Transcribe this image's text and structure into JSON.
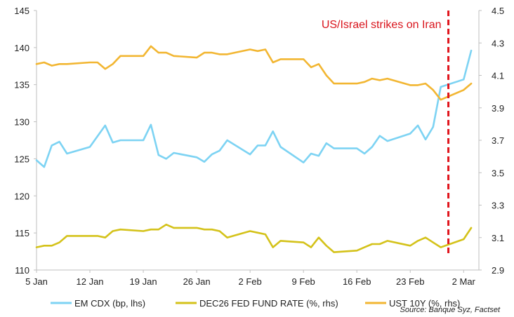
{
  "chart_data": {
    "type": "line",
    "x_start": "2026-01-05",
    "x_end": "2026-03-04",
    "x_ticks": [
      {
        "label": "5 Jan",
        "date": "2026-01-05"
      },
      {
        "label": "12 Jan",
        "date": "2026-01-12"
      },
      {
        "label": "19 Jan",
        "date": "2026-01-19"
      },
      {
        "label": "26 Jan",
        "date": "2026-01-26"
      },
      {
        "label": "2 Feb",
        "date": "2026-02-02"
      },
      {
        "label": "9 Feb",
        "date": "2026-02-09"
      },
      {
        "label": "16 Feb",
        "date": "2026-02-16"
      },
      {
        "label": "23 Feb",
        "date": "2026-02-23"
      },
      {
        "label": "2 Mar",
        "date": "2026-03-02"
      }
    ],
    "y_left": {
      "min": 110,
      "max": 145,
      "ticks": [
        110,
        115,
        120,
        125,
        130,
        135,
        140,
        145
      ]
    },
    "y_right": {
      "min": 2.9,
      "max": 4.5,
      "ticks": [
        "2.9",
        "3.1",
        "3.3",
        "3.5",
        "3.7",
        "3.9",
        "4.1",
        "4.3",
        "4.5"
      ]
    },
    "grid": false,
    "legend_position": "bottom",
    "annotation": {
      "text": "US/Israel strikes on Iran",
      "date": "2026-02-28",
      "color": "#e0141c"
    },
    "source": "Source: Banque Syz, Factset",
    "series": [
      {
        "name": "EM CDX (bp, lhs)",
        "axis": "left",
        "color": "#7dd3f3",
        "points": [
          [
            "2026-01-05",
            124.8
          ],
          [
            "2026-01-06",
            123.9
          ],
          [
            "2026-01-07",
            126.8
          ],
          [
            "2026-01-08",
            127.3
          ],
          [
            "2026-01-09",
            125.7
          ],
          [
            "2026-01-12",
            126.6
          ],
          [
            "2026-01-14",
            129.5
          ],
          [
            "2026-01-15",
            127.2
          ],
          [
            "2026-01-16",
            127.5
          ],
          [
            "2026-01-19",
            127.5
          ],
          [
            "2026-01-20",
            129.6
          ],
          [
            "2026-01-21",
            125.5
          ],
          [
            "2026-01-22",
            125.0
          ],
          [
            "2026-01-23",
            125.8
          ],
          [
            "2026-01-26",
            125.2
          ],
          [
            "2026-01-27",
            124.6
          ],
          [
            "2026-01-28",
            125.6
          ],
          [
            "2026-01-29",
            126.1
          ],
          [
            "2026-01-30",
            127.5
          ],
          [
            "2026-02-02",
            125.6
          ],
          [
            "2026-02-03",
            126.8
          ],
          [
            "2026-02-04",
            126.8
          ],
          [
            "2026-02-05",
            128.7
          ],
          [
            "2026-02-06",
            126.6
          ],
          [
            "2026-02-09",
            124.5
          ],
          [
            "2026-02-10",
            125.7
          ],
          [
            "2026-02-11",
            125.4
          ],
          [
            "2026-02-12",
            127.1
          ],
          [
            "2026-02-13",
            126.4
          ],
          [
            "2026-02-16",
            126.4
          ],
          [
            "2026-02-17",
            125.7
          ],
          [
            "2026-02-18",
            126.6
          ],
          [
            "2026-02-19",
            128.1
          ],
          [
            "2026-02-20",
            127.4
          ],
          [
            "2026-02-23",
            128.4
          ],
          [
            "2026-02-24",
            129.5
          ],
          [
            "2026-02-25",
            127.6
          ],
          [
            "2026-02-26",
            129.3
          ],
          [
            "2026-02-27",
            134.7
          ],
          [
            "2026-03-02",
            135.7
          ],
          [
            "2026-03-03",
            139.6
          ]
        ]
      },
      {
        "name": "DEC26 FED FUND RATE (%, rhs)",
        "axis": "right",
        "color": "#d4c21a",
        "points": [
          [
            "2026-01-05",
            3.04
          ],
          [
            "2026-01-06",
            3.05
          ],
          [
            "2026-01-07",
            3.05
          ],
          [
            "2026-01-08",
            3.07
          ],
          [
            "2026-01-09",
            3.11
          ],
          [
            "2026-01-12",
            3.11
          ],
          [
            "2026-01-13",
            3.11
          ],
          [
            "2026-01-14",
            3.1
          ],
          [
            "2026-01-15",
            3.14
          ],
          [
            "2026-01-16",
            3.15
          ],
          [
            "2026-01-19",
            3.14
          ],
          [
            "2026-01-20",
            3.15
          ],
          [
            "2026-01-21",
            3.15
          ],
          [
            "2026-01-22",
            3.18
          ],
          [
            "2026-01-23",
            3.16
          ],
          [
            "2026-01-26",
            3.16
          ],
          [
            "2026-01-27",
            3.15
          ],
          [
            "2026-01-28",
            3.15
          ],
          [
            "2026-01-29",
            3.14
          ],
          [
            "2026-01-30",
            3.1
          ],
          [
            "2026-02-02",
            3.14
          ],
          [
            "2026-02-03",
            3.13
          ],
          [
            "2026-02-04",
            3.12
          ],
          [
            "2026-02-05",
            3.04
          ],
          [
            "2026-02-06",
            3.08
          ],
          [
            "2026-02-09",
            3.07
          ],
          [
            "2026-02-10",
            3.04
          ],
          [
            "2026-02-11",
            3.1
          ],
          [
            "2026-02-12",
            3.05
          ],
          [
            "2026-02-13",
            3.01
          ],
          [
            "2026-02-16",
            3.02
          ],
          [
            "2026-02-17",
            3.04
          ],
          [
            "2026-02-18",
            3.06
          ],
          [
            "2026-02-19",
            3.06
          ],
          [
            "2026-02-20",
            3.08
          ],
          [
            "2026-02-23",
            3.05
          ],
          [
            "2026-02-24",
            3.08
          ],
          [
            "2026-02-25",
            3.1
          ],
          [
            "2026-02-26",
            3.07
          ],
          [
            "2026-02-27",
            3.04
          ],
          [
            "2026-03-02",
            3.09
          ],
          [
            "2026-03-03",
            3.16
          ]
        ]
      },
      {
        "name": "UST 10Y (%, rhs)",
        "axis": "right",
        "color": "#f2b632",
        "points": [
          [
            "2026-01-05",
            4.17
          ],
          [
            "2026-01-06",
            4.18
          ],
          [
            "2026-01-07",
            4.16
          ],
          [
            "2026-01-08",
            4.17
          ],
          [
            "2026-01-09",
            4.17
          ],
          [
            "2026-01-12",
            4.18
          ],
          [
            "2026-01-13",
            4.18
          ],
          [
            "2026-01-14",
            4.14
          ],
          [
            "2026-01-15",
            4.17
          ],
          [
            "2026-01-16",
            4.22
          ],
          [
            "2026-01-19",
            4.22
          ],
          [
            "2026-01-20",
            4.28
          ],
          [
            "2026-01-21",
            4.24
          ],
          [
            "2026-01-22",
            4.24
          ],
          [
            "2026-01-23",
            4.22
          ],
          [
            "2026-01-26",
            4.21
          ],
          [
            "2026-01-27",
            4.24
          ],
          [
            "2026-01-28",
            4.24
          ],
          [
            "2026-01-29",
            4.23
          ],
          [
            "2026-01-30",
            4.23
          ],
          [
            "2026-02-02",
            4.26
          ],
          [
            "2026-02-03",
            4.25
          ],
          [
            "2026-02-04",
            4.26
          ],
          [
            "2026-02-05",
            4.18
          ],
          [
            "2026-02-06",
            4.2
          ],
          [
            "2026-02-09",
            4.2
          ],
          [
            "2026-02-10",
            4.15
          ],
          [
            "2026-02-11",
            4.17
          ],
          [
            "2026-02-12",
            4.1
          ],
          [
            "2026-02-13",
            4.05
          ],
          [
            "2026-02-16",
            4.05
          ],
          [
            "2026-02-17",
            4.06
          ],
          [
            "2026-02-18",
            4.08
          ],
          [
            "2026-02-19",
            4.07
          ],
          [
            "2026-02-20",
            4.08
          ],
          [
            "2026-02-23",
            4.04
          ],
          [
            "2026-02-24",
            4.04
          ],
          [
            "2026-02-25",
            4.05
          ],
          [
            "2026-02-26",
            4.01
          ],
          [
            "2026-02-27",
            3.95
          ],
          [
            "2026-03-02",
            4.01
          ],
          [
            "2026-03-03",
            4.05
          ]
        ]
      }
    ]
  }
}
